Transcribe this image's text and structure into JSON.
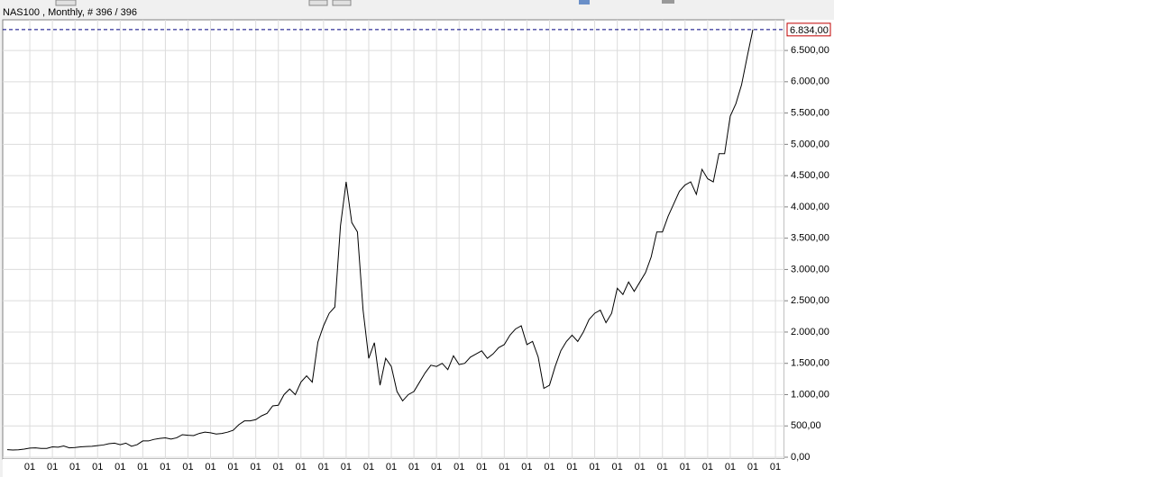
{
  "chart_data": {
    "type": "line",
    "title": "NAS100 , Monthly, # 396 / 396",
    "categories": [
      null,
      null,
      null,
      null,
      "01",
      null,
      null,
      null,
      "01",
      null,
      null,
      null,
      "01",
      null,
      null,
      null,
      "01",
      null,
      null,
      null,
      "01",
      null,
      null,
      null,
      "01",
      null,
      null,
      null,
      "01",
      null,
      null,
      null,
      "01",
      null,
      null,
      null,
      "01",
      null,
      null,
      null,
      "01",
      null,
      null,
      null,
      "01",
      null,
      null,
      null,
      "01",
      null,
      null,
      null,
      "01",
      null,
      null,
      null,
      "01",
      null,
      null,
      null,
      "01",
      null,
      null,
      null,
      "01",
      null,
      null,
      null,
      "01",
      null,
      null,
      null,
      "01",
      null,
      null,
      null,
      "01",
      null,
      null,
      null,
      "01",
      null,
      null,
      null,
      "01",
      null,
      null,
      null,
      "01",
      null,
      null,
      null,
      "01",
      null,
      null,
      null,
      "01",
      null,
      null,
      null,
      "01",
      null,
      null,
      null,
      "01",
      null,
      null,
      null,
      "01",
      null,
      null,
      null,
      "01",
      null,
      null,
      null,
      "01",
      null,
      null,
      null,
      "01",
      null,
      null,
      null,
      "01",
      null,
      null,
      null,
      "01",
      null,
      null,
      null,
      "01",
      null,
      null,
      null,
      "01"
    ],
    "series": [
      {
        "name": "NAS100",
        "color": "#000000",
        "values": [
          120,
          115,
          118,
          130,
          145,
          150,
          140,
          140,
          165,
          160,
          180,
          150,
          155,
          165,
          170,
          175,
          185,
          195,
          215,
          225,
          200,
          225,
          175,
          200,
          260,
          260,
          285,
          300,
          310,
          290,
          310,
          360,
          350,
          345,
          380,
          400,
          390,
          370,
          380,
          400,
          430,
          520,
          580,
          580,
          600,
          660,
          700,
          820,
          830,
          1000,
          1090,
          1000,
          1200,
          1300,
          1200,
          1840,
          2100,
          2300,
          2400,
          3700,
          4400,
          3750,
          3600,
          2350,
          1580,
          1830,
          1150,
          1580,
          1450,
          1050,
          900,
          1000,
          1050,
          1200,
          1350,
          1470,
          1450,
          1500,
          1400,
          1620,
          1480,
          1500,
          1600,
          1650,
          1700,
          1580,
          1650,
          1750,
          1800,
          1950,
          2050,
          2100,
          1800,
          1850,
          1600,
          1100,
          1150,
          1450,
          1700,
          1850,
          1950,
          1850,
          2000,
          2200,
          2300,
          2350,
          2150,
          2300,
          2700,
          2600,
          2800,
          2650,
          2800,
          2950,
          3200,
          3600,
          3600,
          3850,
          4050,
          4250,
          4350,
          4400,
          4200,
          4600,
          4450,
          4400,
          4850,
          4850,
          5450,
          5650,
          5950,
          6400,
          6834,
          null,
          null,
          null,
          null
        ]
      }
    ],
    "ylim": [
      0,
      6990
    ],
    "yticks": [
      {
        "value": 0,
        "label": "0,00"
      },
      {
        "value": 500,
        "label": "500,00"
      },
      {
        "value": 1000,
        "label": "1.000,00"
      },
      {
        "value": 1500,
        "label": "1.500,00"
      },
      {
        "value": 2000,
        "label": "2.000,00"
      },
      {
        "value": 2500,
        "label": "2.500,00"
      },
      {
        "value": 3000,
        "label": "3.000,00"
      },
      {
        "value": 3500,
        "label": "3.500,00"
      },
      {
        "value": 4000,
        "label": "4.000,00"
      },
      {
        "value": 4500,
        "label": "4.500,00"
      },
      {
        "value": 5000,
        "label": "5.000,00"
      },
      {
        "value": 5500,
        "label": "5.500,00"
      },
      {
        "value": 6000,
        "label": "6.000,00"
      },
      {
        "value": 6500,
        "label": "6.500,00"
      }
    ],
    "last_price": {
      "value": 6834,
      "label": "6.834,00",
      "color": "#c00000",
      "line_color": "#000080"
    },
    "grid": true
  }
}
